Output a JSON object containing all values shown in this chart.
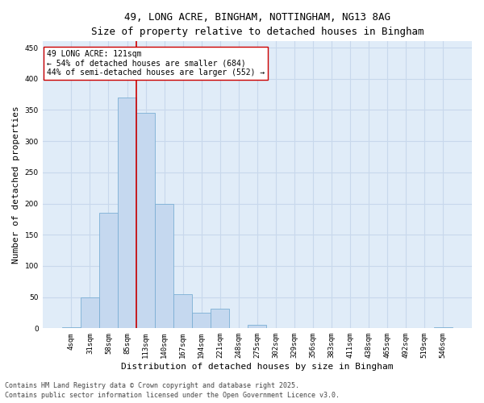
{
  "title_line1": "49, LONG ACRE, BINGHAM, NOTTINGHAM, NG13 8AG",
  "title_line2": "Size of property relative to detached houses in Bingham",
  "xlabel": "Distribution of detached houses by size in Bingham",
  "ylabel": "Number of detached properties",
  "bar_labels": [
    "4sqm",
    "31sqm",
    "58sqm",
    "85sqm",
    "113sqm",
    "140sqm",
    "167sqm",
    "194sqm",
    "221sqm",
    "248sqm",
    "275sqm",
    "302sqm",
    "329sqm",
    "356sqm",
    "383sqm",
    "411sqm",
    "438sqm",
    "465sqm",
    "492sqm",
    "519sqm",
    "546sqm"
  ],
  "bar_values": [
    2,
    50,
    185,
    370,
    345,
    200,
    55,
    25,
    32,
    0,
    6,
    0,
    0,
    0,
    0,
    0,
    0,
    0,
    0,
    0,
    2
  ],
  "bar_color": "#C5D8EF",
  "bar_edge_color": "#7BAFD4",
  "vline_position": 3.5,
  "vline_color": "#CC0000",
  "annotation_text": "49 LONG ACRE: 121sqm\n← 54% of detached houses are smaller (684)\n44% of semi-detached houses are larger (552) →",
  "annotation_box_facecolor": "#ffffff",
  "annotation_box_edgecolor": "#CC0000",
  "ylim": [
    0,
    460
  ],
  "yticks": [
    0,
    50,
    100,
    150,
    200,
    250,
    300,
    350,
    400,
    450
  ],
  "grid_color": "#C8D8EC",
  "background_color": "#E0ECF8",
  "footer_line1": "Contains HM Land Registry data © Crown copyright and database right 2025.",
  "footer_line2": "Contains public sector information licensed under the Open Government Licence v3.0.",
  "title_fontsize": 9,
  "subtitle_fontsize": 8.5,
  "ylabel_fontsize": 8,
  "xlabel_fontsize": 8,
  "tick_fontsize": 6.5,
  "annotation_fontsize": 7,
  "footer_fontsize": 6
}
